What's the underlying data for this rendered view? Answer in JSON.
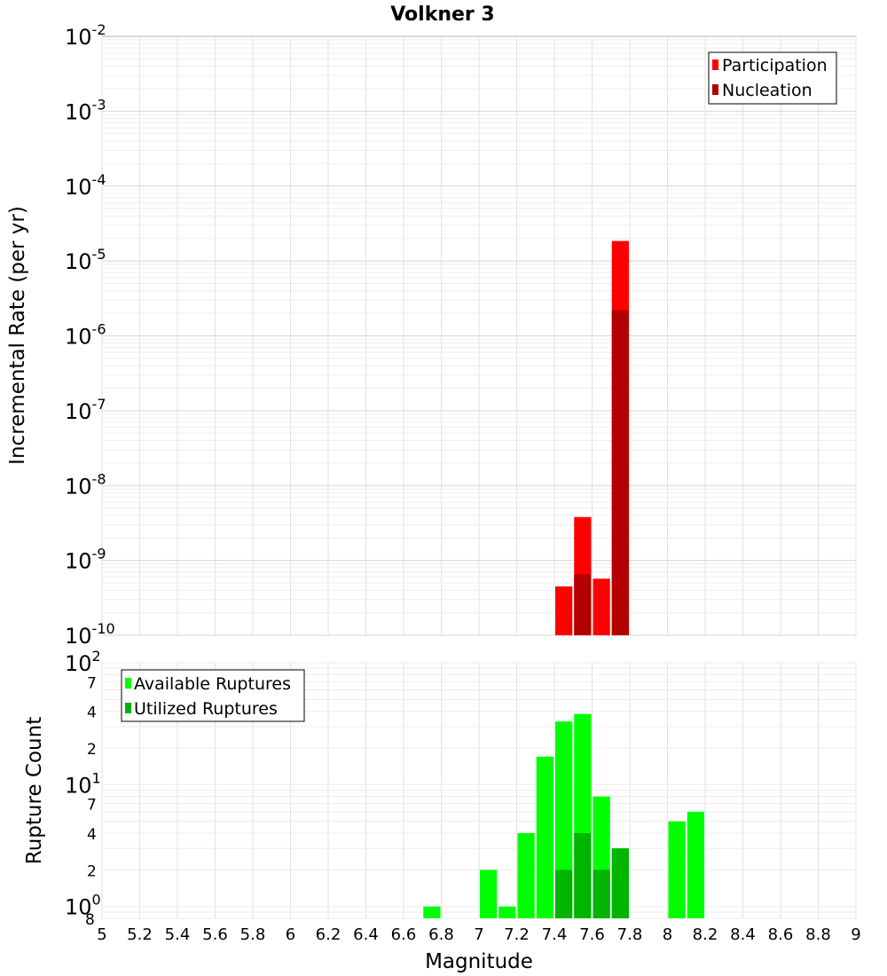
{
  "chart_data": [
    {
      "type": "bar",
      "title": "Volkner 3",
      "xlabel": "",
      "ylabel": "Incremental Rate (per yr)",
      "yscale": "log",
      "ylim": [
        1e-10,
        0.01
      ],
      "ytick_labels": [
        {
          "base": "10",
          "exp": "-10"
        },
        {
          "base": "10",
          "exp": "-9"
        },
        {
          "base": "10",
          "exp": "-8"
        },
        {
          "base": "10",
          "exp": "-7"
        },
        {
          "base": "10",
          "exp": "-6"
        },
        {
          "base": "10",
          "exp": "-5"
        },
        {
          "base": "10",
          "exp": "-4"
        },
        {
          "base": "10",
          "exp": "-3"
        },
        {
          "base": "10",
          "exp": "-2"
        }
      ],
      "legend_position": "top-right",
      "grid": true,
      "bar_width": 0.1,
      "series": [
        {
          "name": "Participation",
          "color": "#ff0000",
          "x": [
            7.45,
            7.55,
            7.65,
            7.75
          ],
          "values": [
            4.5e-10,
            3.8e-09,
            5.7e-10,
            1.85e-05
          ]
        },
        {
          "name": "Nucleation",
          "color": "#b40000",
          "x": [
            7.55,
            7.75
          ],
          "values": [
            6.5e-10,
            2.2e-06
          ]
        }
      ]
    },
    {
      "type": "bar",
      "title": "",
      "xlabel": "Magnitude",
      "ylabel": "Rupture Count",
      "yscale": "log",
      "ylim": [
        0.8,
        100
      ],
      "xlim": [
        5,
        9
      ],
      "x_ticks": [
        "5",
        "5.2",
        "5.4",
        "5.6",
        "5.8",
        "6",
        "6.2",
        "6.4",
        "6.6",
        "6.8",
        "7",
        "7.2",
        "7.4",
        "7.6",
        "7.8",
        "8",
        "8.2",
        "8.4",
        "8.6",
        "8.8",
        "9"
      ],
      "ytick_labels": [
        {
          "value": 0.8,
          "base": "8",
          "exp": ""
        },
        {
          "value": 1,
          "base": "10",
          "exp": "0"
        },
        {
          "value": 2,
          "base": "2",
          "exp": ""
        },
        {
          "value": 4,
          "base": "4",
          "exp": ""
        },
        {
          "value": 7,
          "base": "7",
          "exp": ""
        },
        {
          "value": 10,
          "base": "10",
          "exp": "1"
        },
        {
          "value": 20,
          "base": "2",
          "exp": ""
        },
        {
          "value": 40,
          "base": "4",
          "exp": ""
        },
        {
          "value": 70,
          "base": "7",
          "exp": ""
        },
        {
          "value": 100,
          "base": "10",
          "exp": "2"
        }
      ],
      "legend_position": "top-left",
      "grid": true,
      "bar_width": 0.1,
      "series": [
        {
          "name": "Available Ruptures",
          "color": "#00ff00",
          "x": [
            6.75,
            7.05,
            7.15,
            7.25,
            7.35,
            7.45,
            7.55,
            7.65,
            7.75,
            8.05,
            8.15
          ],
          "values": [
            1,
            2,
            1,
            4,
            17,
            33,
            38,
            8,
            3,
            5,
            6
          ]
        },
        {
          "name": "Utilized Ruptures",
          "color": "#00b400",
          "x": [
            7.45,
            7.55,
            7.65,
            7.75
          ],
          "values": [
            2,
            4,
            2,
            3
          ]
        }
      ]
    }
  ]
}
